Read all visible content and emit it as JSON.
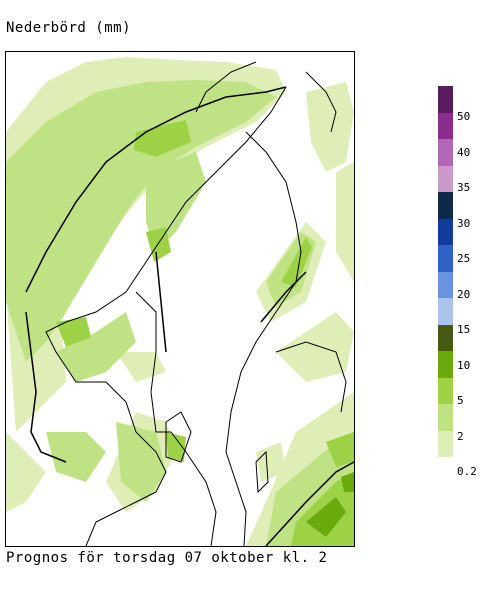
{
  "title": "Nederbörd (mm)",
  "caption": "Prognos för torsdag 07 oktober kl. 2",
  "legend": {
    "labels": [
      "50",
      "40",
      "35",
      "30",
      "25",
      "20",
      "15",
      "10",
      "5",
      "2",
      "0.2"
    ],
    "colors": [
      "#5a1a5e",
      "#8a2d8e",
      "#b366b8",
      "#cc99cc",
      "#0d2a4a",
      "#0f3d99",
      "#2f62c4",
      "#6a93dd",
      "#a8c4ea",
      "#475a14",
      "#6aaa0c",
      "#9dd146",
      "#bfe284",
      "#dfeeb6"
    ]
  },
  "colors": {
    "light": "#dfeeb6",
    "medium": "#bfe284",
    "strong": "#9dd146",
    "heavy": "#6aaa0c"
  }
}
